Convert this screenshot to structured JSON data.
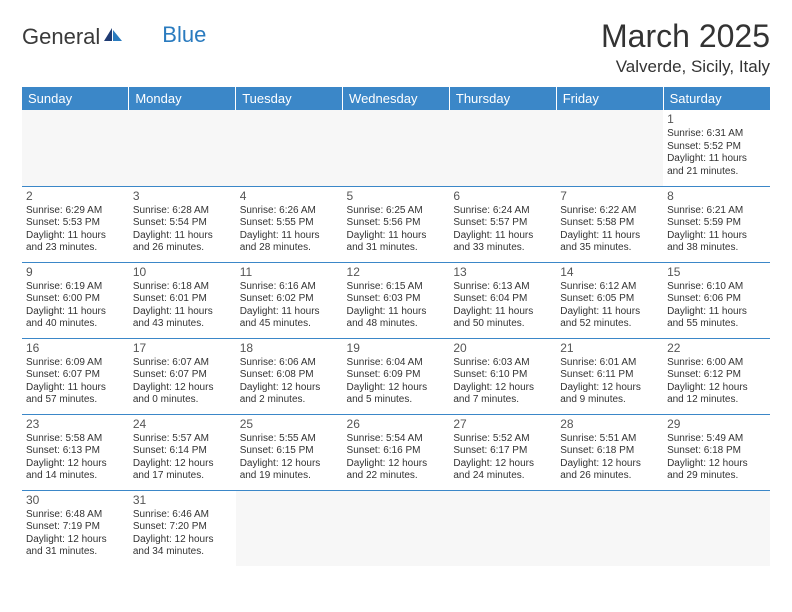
{
  "brand": {
    "part1": "General",
    "part2": "Blue"
  },
  "title": "March 2025",
  "location": "Valverde, Sicily, Italy",
  "colors": {
    "header_bg": "#3b87c8",
    "header_text": "#ffffff",
    "border": "#3b87c8",
    "brand_blue": "#2a7bbf",
    "text": "#333333"
  },
  "weekdays": [
    "Sunday",
    "Monday",
    "Tuesday",
    "Wednesday",
    "Thursday",
    "Friday",
    "Saturday"
  ],
  "weeks": [
    [
      null,
      null,
      null,
      null,
      null,
      null,
      {
        "n": "1",
        "sr": "Sunrise: 6:31 AM",
        "ss": "Sunset: 5:52 PM",
        "d1": "Daylight: 11 hours",
        "d2": "and 21 minutes."
      }
    ],
    [
      {
        "n": "2",
        "sr": "Sunrise: 6:29 AM",
        "ss": "Sunset: 5:53 PM",
        "d1": "Daylight: 11 hours",
        "d2": "and 23 minutes."
      },
      {
        "n": "3",
        "sr": "Sunrise: 6:28 AM",
        "ss": "Sunset: 5:54 PM",
        "d1": "Daylight: 11 hours",
        "d2": "and 26 minutes."
      },
      {
        "n": "4",
        "sr": "Sunrise: 6:26 AM",
        "ss": "Sunset: 5:55 PM",
        "d1": "Daylight: 11 hours",
        "d2": "and 28 minutes."
      },
      {
        "n": "5",
        "sr": "Sunrise: 6:25 AM",
        "ss": "Sunset: 5:56 PM",
        "d1": "Daylight: 11 hours",
        "d2": "and 31 minutes."
      },
      {
        "n": "6",
        "sr": "Sunrise: 6:24 AM",
        "ss": "Sunset: 5:57 PM",
        "d1": "Daylight: 11 hours",
        "d2": "and 33 minutes."
      },
      {
        "n": "7",
        "sr": "Sunrise: 6:22 AM",
        "ss": "Sunset: 5:58 PM",
        "d1": "Daylight: 11 hours",
        "d2": "and 35 minutes."
      },
      {
        "n": "8",
        "sr": "Sunrise: 6:21 AM",
        "ss": "Sunset: 5:59 PM",
        "d1": "Daylight: 11 hours",
        "d2": "and 38 minutes."
      }
    ],
    [
      {
        "n": "9",
        "sr": "Sunrise: 6:19 AM",
        "ss": "Sunset: 6:00 PM",
        "d1": "Daylight: 11 hours",
        "d2": "and 40 minutes."
      },
      {
        "n": "10",
        "sr": "Sunrise: 6:18 AM",
        "ss": "Sunset: 6:01 PM",
        "d1": "Daylight: 11 hours",
        "d2": "and 43 minutes."
      },
      {
        "n": "11",
        "sr": "Sunrise: 6:16 AM",
        "ss": "Sunset: 6:02 PM",
        "d1": "Daylight: 11 hours",
        "d2": "and 45 minutes."
      },
      {
        "n": "12",
        "sr": "Sunrise: 6:15 AM",
        "ss": "Sunset: 6:03 PM",
        "d1": "Daylight: 11 hours",
        "d2": "and 48 minutes."
      },
      {
        "n": "13",
        "sr": "Sunrise: 6:13 AM",
        "ss": "Sunset: 6:04 PM",
        "d1": "Daylight: 11 hours",
        "d2": "and 50 minutes."
      },
      {
        "n": "14",
        "sr": "Sunrise: 6:12 AM",
        "ss": "Sunset: 6:05 PM",
        "d1": "Daylight: 11 hours",
        "d2": "and 52 minutes."
      },
      {
        "n": "15",
        "sr": "Sunrise: 6:10 AM",
        "ss": "Sunset: 6:06 PM",
        "d1": "Daylight: 11 hours",
        "d2": "and 55 minutes."
      }
    ],
    [
      {
        "n": "16",
        "sr": "Sunrise: 6:09 AM",
        "ss": "Sunset: 6:07 PM",
        "d1": "Daylight: 11 hours",
        "d2": "and 57 minutes."
      },
      {
        "n": "17",
        "sr": "Sunrise: 6:07 AM",
        "ss": "Sunset: 6:07 PM",
        "d1": "Daylight: 12 hours",
        "d2": "and 0 minutes."
      },
      {
        "n": "18",
        "sr": "Sunrise: 6:06 AM",
        "ss": "Sunset: 6:08 PM",
        "d1": "Daylight: 12 hours",
        "d2": "and 2 minutes."
      },
      {
        "n": "19",
        "sr": "Sunrise: 6:04 AM",
        "ss": "Sunset: 6:09 PM",
        "d1": "Daylight: 12 hours",
        "d2": "and 5 minutes."
      },
      {
        "n": "20",
        "sr": "Sunrise: 6:03 AM",
        "ss": "Sunset: 6:10 PM",
        "d1": "Daylight: 12 hours",
        "d2": "and 7 minutes."
      },
      {
        "n": "21",
        "sr": "Sunrise: 6:01 AM",
        "ss": "Sunset: 6:11 PM",
        "d1": "Daylight: 12 hours",
        "d2": "and 9 minutes."
      },
      {
        "n": "22",
        "sr": "Sunrise: 6:00 AM",
        "ss": "Sunset: 6:12 PM",
        "d1": "Daylight: 12 hours",
        "d2": "and 12 minutes."
      }
    ],
    [
      {
        "n": "23",
        "sr": "Sunrise: 5:58 AM",
        "ss": "Sunset: 6:13 PM",
        "d1": "Daylight: 12 hours",
        "d2": "and 14 minutes."
      },
      {
        "n": "24",
        "sr": "Sunrise: 5:57 AM",
        "ss": "Sunset: 6:14 PM",
        "d1": "Daylight: 12 hours",
        "d2": "and 17 minutes."
      },
      {
        "n": "25",
        "sr": "Sunrise: 5:55 AM",
        "ss": "Sunset: 6:15 PM",
        "d1": "Daylight: 12 hours",
        "d2": "and 19 minutes."
      },
      {
        "n": "26",
        "sr": "Sunrise: 5:54 AM",
        "ss": "Sunset: 6:16 PM",
        "d1": "Daylight: 12 hours",
        "d2": "and 22 minutes."
      },
      {
        "n": "27",
        "sr": "Sunrise: 5:52 AM",
        "ss": "Sunset: 6:17 PM",
        "d1": "Daylight: 12 hours",
        "d2": "and 24 minutes."
      },
      {
        "n": "28",
        "sr": "Sunrise: 5:51 AM",
        "ss": "Sunset: 6:18 PM",
        "d1": "Daylight: 12 hours",
        "d2": "and 26 minutes."
      },
      {
        "n": "29",
        "sr": "Sunrise: 5:49 AM",
        "ss": "Sunset: 6:18 PM",
        "d1": "Daylight: 12 hours",
        "d2": "and 29 minutes."
      }
    ],
    [
      {
        "n": "30",
        "sr": "Sunrise: 6:48 AM",
        "ss": "Sunset: 7:19 PM",
        "d1": "Daylight: 12 hours",
        "d2": "and 31 minutes."
      },
      {
        "n": "31",
        "sr": "Sunrise: 6:46 AM",
        "ss": "Sunset: 7:20 PM",
        "d1": "Daylight: 12 hours",
        "d2": "and 34 minutes."
      },
      null,
      null,
      null,
      null,
      null
    ]
  ]
}
